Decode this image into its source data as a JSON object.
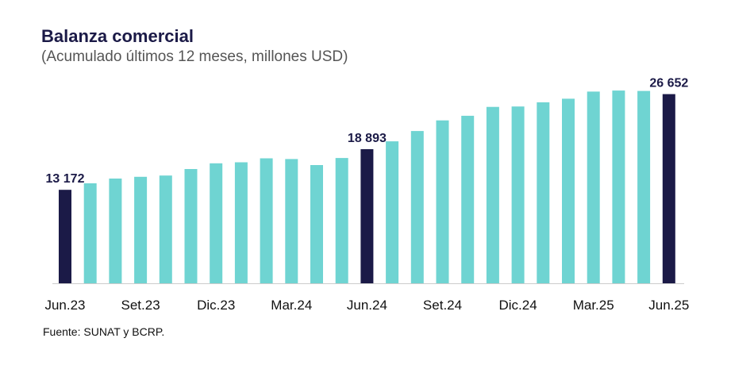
{
  "header": {
    "title": "Balanza comercial",
    "subtitle": "(Acumulado últimos 12 meses, millones USD)"
  },
  "footer": {
    "source": "Fuente: SUNAT y BCRP."
  },
  "colors": {
    "regular_bar": "#6fd4d2",
    "highlight_bar": "#1b1a47",
    "title": "#1b1a47",
    "axis": "#cccccc"
  },
  "chart_data": {
    "type": "bar",
    "title": "Balanza comercial",
    "subtitle": "(Acumulado últimos 12 meses, millones USD)",
    "xlabel": "",
    "ylabel": "",
    "ylim": [
      0,
      28000
    ],
    "grid": false,
    "legend": "none",
    "x_tick_labels": [
      "Jun.23",
      "Set.23",
      "Dic.23",
      "Mar.24",
      "Jun.24",
      "Set.24",
      "Dic.24",
      "Mar.25",
      "Jun.25"
    ],
    "x_tick_every": 3,
    "values": [
      13172,
      14080,
      14750,
      15000,
      15180,
      16100,
      16900,
      17050,
      17600,
      17500,
      16650,
      17650,
      18893,
      20000,
      21450,
      22950,
      23600,
      24850,
      24900,
      25500,
      26000,
      27000,
      27150,
      27100,
      26652
    ],
    "highlight_indices": [
      0,
      12,
      24
    ],
    "data_labels": [
      {
        "index": 0,
        "text": "13 172"
      },
      {
        "index": 12,
        "text": "18 893"
      },
      {
        "index": 24,
        "text": "26 652"
      }
    ]
  }
}
